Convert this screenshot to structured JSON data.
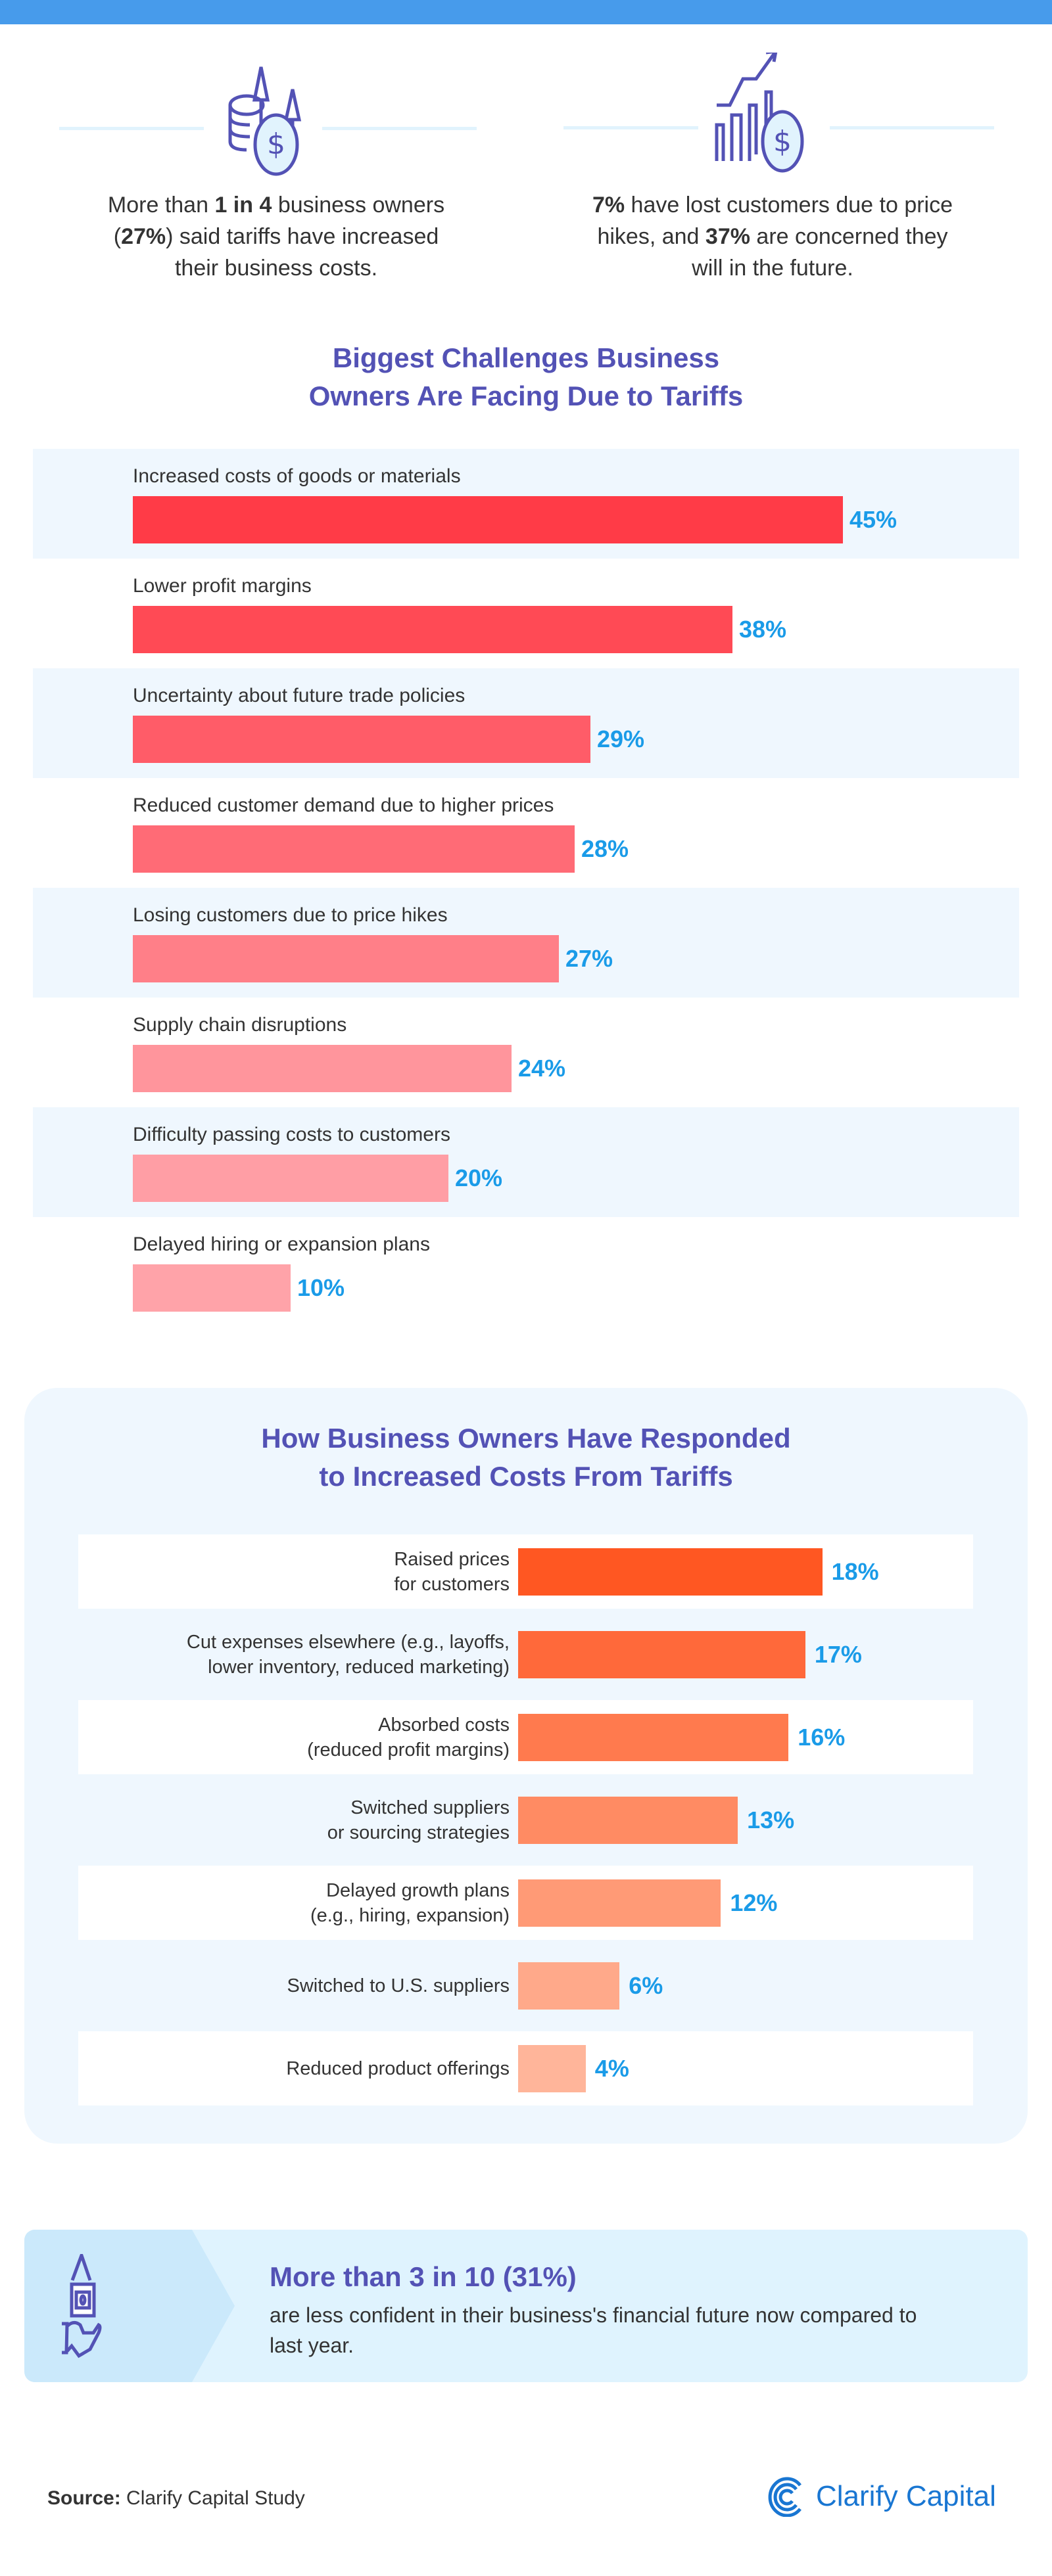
{
  "stats": [
    {
      "pre": "More than ",
      "bold1": "1 in 4",
      "mid": " business owners (",
      "bold2": "27%",
      "post": ") said tariffs have increased their business costs.",
      "icon": "coins-arrows-up-icon"
    },
    {
      "pre": "",
      "bold1": "7%",
      "mid": " have lost customers due to price hikes, and ",
      "bold2": "37%",
      "post": " are concerned they will in the future.",
      "icon": "bar-chart-dollar-icon"
    }
  ],
  "chart_data": [
    {
      "type": "bar",
      "orientation": "horizontal",
      "title": "Biggest Challenges Business Owners Are Facing Due to Tariffs",
      "title_lines": [
        "Biggest Challenges Business",
        "Owners Are Facing Due to Tariffs"
      ],
      "categories": [
        "Increased costs of goods or materials",
        "Lower profit margins",
        "Uncertainty about future trade policies",
        "Reduced customer demand due to higher prices",
        "Losing customers due to price hikes",
        "Supply chain disruptions",
        "Difficulty passing costs to customers",
        "Delayed hiring or expansion plans"
      ],
      "values": [
        45,
        38,
        29,
        28,
        27,
        24,
        20,
        10
      ],
      "value_labels": [
        "45%",
        "38%",
        "29%",
        "28%",
        "27%",
        "24%",
        "20%",
        "10%"
      ],
      "colors": [
        "#ff3b47",
        "#ff4a55",
        "#ff5c68",
        "#ff6b76",
        "#ff7f88",
        "#ff959c",
        "#ff9ea5",
        "#ffa3a9"
      ],
      "value_label_color": "#1a9be8"
    },
    {
      "type": "bar",
      "orientation": "horizontal",
      "title": "How Business Owners Have Responded to Increased Costs From Tariffs",
      "title_lines": [
        "How Business Owners Have Responded",
        "to Increased Costs From Tariffs"
      ],
      "categories": [
        [
          "Raised prices",
          "for customers"
        ],
        [
          "Cut expenses elsewhere (e.g., layoffs,",
          "lower inventory, reduced marketing)"
        ],
        [
          "Absorbed costs",
          "(reduced profit margins)"
        ],
        [
          "Switched suppliers",
          "or sourcing strategies"
        ],
        [
          "Delayed growth plans",
          "(e.g., hiring, expansion)"
        ],
        [
          "Switched to U.S. suppliers"
        ],
        [
          "Reduced product offerings"
        ]
      ],
      "values": [
        18,
        17,
        16,
        13,
        12,
        6,
        4
      ],
      "value_labels": [
        "18%",
        "17%",
        "16%",
        "13%",
        "12%",
        "6%",
        "4%"
      ],
      "colors": [
        "#ff5722",
        "#ff693a",
        "#ff7a4e",
        "#ff8b63",
        "#ff9a76",
        "#ffa98a",
        "#ffb59a"
      ],
      "value_label_color": "#1a9be8"
    }
  ],
  "callout": {
    "title": "More than 3 in 10 (31%)",
    "body": "are less confident in their business's financial future now compared to last year.",
    "icon": "hand-holding-money-icon"
  },
  "footer": {
    "source_label": "Source:",
    "source_value": " Clarify Capital Study",
    "logo_text": "Clarify Capital"
  },
  "colors": {
    "accent": "#5352b5",
    "topbar": "#479beb",
    "value": "#1a9be8",
    "brand": "#1976d2"
  }
}
